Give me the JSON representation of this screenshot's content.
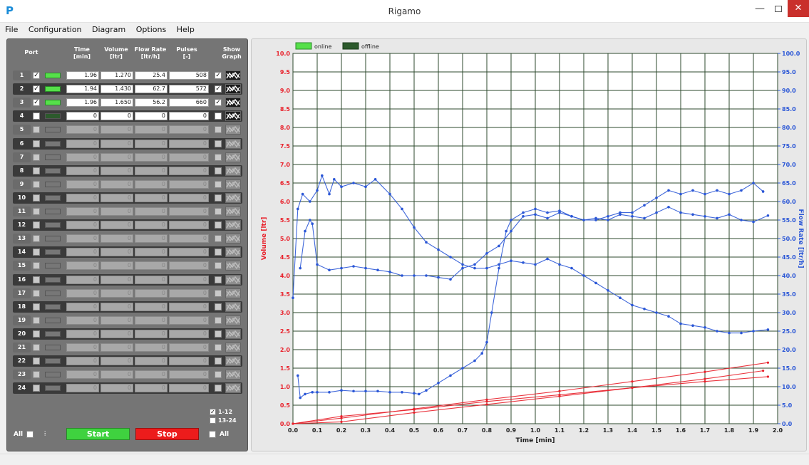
{
  "window": {
    "title": "Rigamo",
    "icon_glyph": "P",
    "min_glyph": "—",
    "close_glyph": "✕"
  },
  "menu": [
    "File",
    "Configuration",
    "Diagram",
    "Options",
    "Help"
  ],
  "table": {
    "headers": {
      "port": "Port",
      "time": "Time\n[min]",
      "volume": "Volume\n[ltr]",
      "flow": "Flow Rate\n[ltr/h]",
      "pulses": "Pulses\n[-]",
      "show": "Show\nGraph"
    },
    "rows": [
      {
        "port": "1",
        "checked": true,
        "online": true,
        "time": "1.96",
        "volume": "1.270",
        "flow": "25.4",
        "pulses": "508",
        "show": true
      },
      {
        "port": "2",
        "checked": true,
        "online": true,
        "time": "1.94",
        "volume": "1.430",
        "flow": "62.7",
        "pulses": "572",
        "show": true
      },
      {
        "port": "3",
        "checked": true,
        "online": true,
        "time": "1.96",
        "volume": "1.650",
        "flow": "56.2",
        "pulses": "660",
        "show": true
      },
      {
        "port": "4",
        "checked": false,
        "online": false,
        "time": "0",
        "volume": "0",
        "flow": "0",
        "pulses": "0",
        "show": false,
        "active": true
      },
      {
        "port": "5",
        "time": "0",
        "volume": "0",
        "flow": "0",
        "pulses": "0"
      },
      {
        "port": "6",
        "time": "0",
        "volume": "0",
        "flow": "0",
        "pulses": "0"
      },
      {
        "port": "7",
        "time": "0",
        "volume": "0",
        "flow": "0",
        "pulses": "0"
      },
      {
        "port": "8",
        "time": "0",
        "volume": "0",
        "flow": "0",
        "pulses": "0"
      },
      {
        "port": "9",
        "time": "0",
        "volume": "0",
        "flow": "0",
        "pulses": "0"
      },
      {
        "port": "10",
        "time": "0",
        "volume": "0",
        "flow": "0",
        "pulses": "0"
      },
      {
        "port": "11",
        "time": "0",
        "volume": "0",
        "flow": "0",
        "pulses": "0"
      },
      {
        "port": "12",
        "time": "0",
        "volume": "0",
        "flow": "0",
        "pulses": "0"
      },
      {
        "port": "13",
        "time": "0",
        "volume": "0",
        "flow": "0",
        "pulses": "0"
      },
      {
        "port": "14",
        "time": "0",
        "volume": "0",
        "flow": "0",
        "pulses": "0"
      },
      {
        "port": "15",
        "time": "0",
        "volume": "0",
        "flow": "0",
        "pulses": "0"
      },
      {
        "port": "16",
        "time": "0",
        "volume": "0",
        "flow": "0",
        "pulses": "0"
      },
      {
        "port": "17",
        "time": "0",
        "volume": "0",
        "flow": "0",
        "pulses": "0"
      },
      {
        "port": "18",
        "time": "0",
        "volume": "0",
        "flow": "0",
        "pulses": "0"
      },
      {
        "port": "19",
        "time": "0",
        "volume": "0",
        "flow": "0",
        "pulses": "0"
      },
      {
        "port": "20",
        "time": "0",
        "volume": "0",
        "flow": "0",
        "pulses": "0"
      },
      {
        "port": "21",
        "time": "0",
        "volume": "0",
        "flow": "0",
        "pulses": "0"
      },
      {
        "port": "22",
        "time": "0",
        "volume": "0",
        "flow": "0",
        "pulses": "0"
      },
      {
        "port": "23",
        "time": "0",
        "volume": "0",
        "flow": "0",
        "pulses": "0"
      },
      {
        "port": "24",
        "time": "0",
        "volume": "0",
        "flow": "0",
        "pulses": "0"
      }
    ]
  },
  "ranges": {
    "r1": "1-12",
    "r1_checked": true,
    "r2": "13-24",
    "r2_checked": false
  },
  "controls": {
    "all_label": "All",
    "all2_label": "All",
    "signal_glyph": "⫶",
    "start_label": "Start",
    "stop_label": "Stop",
    "start_color": "#3fd23f",
    "stop_color": "#ec1c1c"
  },
  "chart_data": {
    "type": "line",
    "legend": [
      {
        "name": "online",
        "color": "#56e04a"
      },
      {
        "name": "offline",
        "color": "#2c5a2c"
      }
    ],
    "legend_placement": "top-left",
    "xlabel": "Time [min]",
    "ylabel": "Volume [ltr]",
    "y2label": "Flow Rate [ltr/h]",
    "xlim": [
      0,
      2.0
    ],
    "ylim": [
      0,
      10.0
    ],
    "y2lim": [
      0,
      100.0
    ],
    "x_ticks": [
      "0.0",
      "0.1",
      "0.2",
      "0.3",
      "0.4",
      "0.5",
      "0.6",
      "0.7",
      "0.8",
      "0.9",
      "1.0",
      "1.1",
      "1.2",
      "1.3",
      "1.4",
      "1.5",
      "1.6",
      "1.7",
      "1.8",
      "1.9",
      "2.0"
    ],
    "y_ticks": [
      "0.0",
      "0.5",
      "1.0",
      "1.5",
      "2.0",
      "2.5",
      "3.0",
      "3.5",
      "4.0",
      "4.5",
      "5.0",
      "5.5",
      "6.0",
      "6.5",
      "7.0",
      "7.5",
      "8.0",
      "8.5",
      "9.0",
      "9.5",
      "10.0"
    ],
    "y2_ticks": [
      "0.0",
      "5.0",
      "10.0",
      "15.0",
      "20.0",
      "25.0",
      "30.0",
      "35.0",
      "40.0",
      "45.0",
      "50.0",
      "55.0",
      "60.0",
      "65.0",
      "70.0",
      "75.0",
      "80.0",
      "85.0",
      "90.0",
      "95.0",
      "100.0"
    ],
    "grid": true,
    "volume_color": "#e8202a",
    "flow_color": "#2a56d6",
    "volume_series": [
      {
        "name": "Port 1",
        "x": [
          0.0,
          0.2,
          0.5,
          0.8,
          1.1,
          1.4,
          1.7,
          1.96
        ],
        "y": [
          0.0,
          0.2,
          0.38,
          0.6,
          0.78,
          0.97,
          1.14,
          1.27
        ]
      },
      {
        "name": "Port 2",
        "x": [
          0.0,
          0.2,
          0.5,
          0.8,
          1.1,
          1.4,
          1.7,
          1.94
        ],
        "y": [
          0.0,
          0.05,
          0.3,
          0.52,
          0.74,
          0.97,
          1.21,
          1.43
        ]
      },
      {
        "name": "Port 3",
        "x": [
          0.0,
          0.2,
          0.5,
          0.8,
          1.1,
          1.4,
          1.7,
          1.96
        ],
        "y": [
          0.0,
          0.15,
          0.4,
          0.65,
          0.88,
          1.14,
          1.4,
          1.65
        ]
      }
    ],
    "flow_series": [
      {
        "name": "Port 1",
        "x": [
          0.0,
          0.02,
          0.04,
          0.07,
          0.1,
          0.12,
          0.15,
          0.17,
          0.2,
          0.25,
          0.3,
          0.34,
          0.4,
          0.45,
          0.5,
          0.55,
          0.6,
          0.65,
          0.7,
          0.75,
          0.8,
          0.85,
          0.9,
          0.95,
          1.0,
          1.05,
          1.1,
          1.15,
          1.2,
          1.25,
          1.3,
          1.35,
          1.4,
          1.45,
          1.5,
          1.55,
          1.6,
          1.65,
          1.7,
          1.75,
          1.8,
          1.85,
          1.9,
          1.96
        ],
        "y": [
          34.0,
          58.0,
          62.0,
          60.0,
          63.0,
          67.0,
          62.0,
          66.0,
          64.0,
          65.0,
          64.0,
          66.0,
          62.0,
          58.0,
          53.0,
          49.0,
          47.0,
          45.0,
          43.0,
          42.0,
          42.0,
          43.0,
          44.0,
          43.5,
          43.0,
          44.5,
          43.0,
          42.0,
          40.0,
          38.0,
          36.0,
          34.0,
          32.0,
          31.0,
          30.0,
          29.0,
          27.0,
          26.5,
          26.0,
          25.0,
          24.5,
          24.5,
          25.0,
          25.4
        ]
      },
      {
        "name": "Port 2",
        "x": [
          0.02,
          0.03,
          0.05,
          0.08,
          0.1,
          0.15,
          0.2,
          0.25,
          0.3,
          0.35,
          0.4,
          0.45,
          0.5,
          0.52,
          0.55,
          0.6,
          0.65,
          0.7,
          0.75,
          0.78,
          0.8,
          0.82,
          0.85,
          0.88,
          0.9,
          0.95,
          1.0,
          1.05,
          1.1,
          1.15,
          1.2,
          1.25,
          1.3,
          1.35,
          1.4,
          1.45,
          1.5,
          1.55,
          1.6,
          1.65,
          1.7,
          1.75,
          1.8,
          1.85,
          1.9,
          1.94
        ],
        "y": [
          13.0,
          7.0,
          8.0,
          8.5,
          8.5,
          8.5,
          9.0,
          8.8,
          8.8,
          8.8,
          8.5,
          8.5,
          8.2,
          8.0,
          9.0,
          11.0,
          13.0,
          15.0,
          17.0,
          19.0,
          22.0,
          30.0,
          42.0,
          52.0,
          55.0,
          57.0,
          58.0,
          57.0,
          57.5,
          56.0,
          55.0,
          55.0,
          56.0,
          57.0,
          57.0,
          59.0,
          61.0,
          63.0,
          62.0,
          63.0,
          62.0,
          63.0,
          62.0,
          63.0,
          65.0,
          62.7
        ]
      },
      {
        "name": "Port 3",
        "x": [
          0.03,
          0.05,
          0.07,
          0.08,
          0.1,
          0.15,
          0.2,
          0.25,
          0.3,
          0.35,
          0.4,
          0.45,
          0.5,
          0.55,
          0.6,
          0.65,
          0.7,
          0.75,
          0.8,
          0.85,
          0.9,
          0.95,
          1.0,
          1.05,
          1.1,
          1.15,
          1.2,
          1.25,
          1.3,
          1.35,
          1.4,
          1.45,
          1.5,
          1.55,
          1.6,
          1.65,
          1.7,
          1.75,
          1.8,
          1.85,
          1.9,
          1.96
        ],
        "y": [
          42.0,
          52.0,
          55.0,
          54.0,
          43.0,
          41.5,
          42.0,
          42.5,
          42.0,
          41.5,
          41.0,
          40.0,
          40.0,
          40.0,
          39.5,
          39.0,
          42.0,
          43.0,
          46.0,
          48.0,
          52.0,
          56.0,
          56.5,
          55.5,
          57.0,
          56.0,
          55.0,
          55.5,
          55.0,
          56.5,
          56.0,
          55.5,
          57.0,
          58.5,
          57.0,
          56.5,
          56.0,
          55.5,
          56.5,
          55.0,
          54.5,
          56.2
        ]
      }
    ]
  }
}
